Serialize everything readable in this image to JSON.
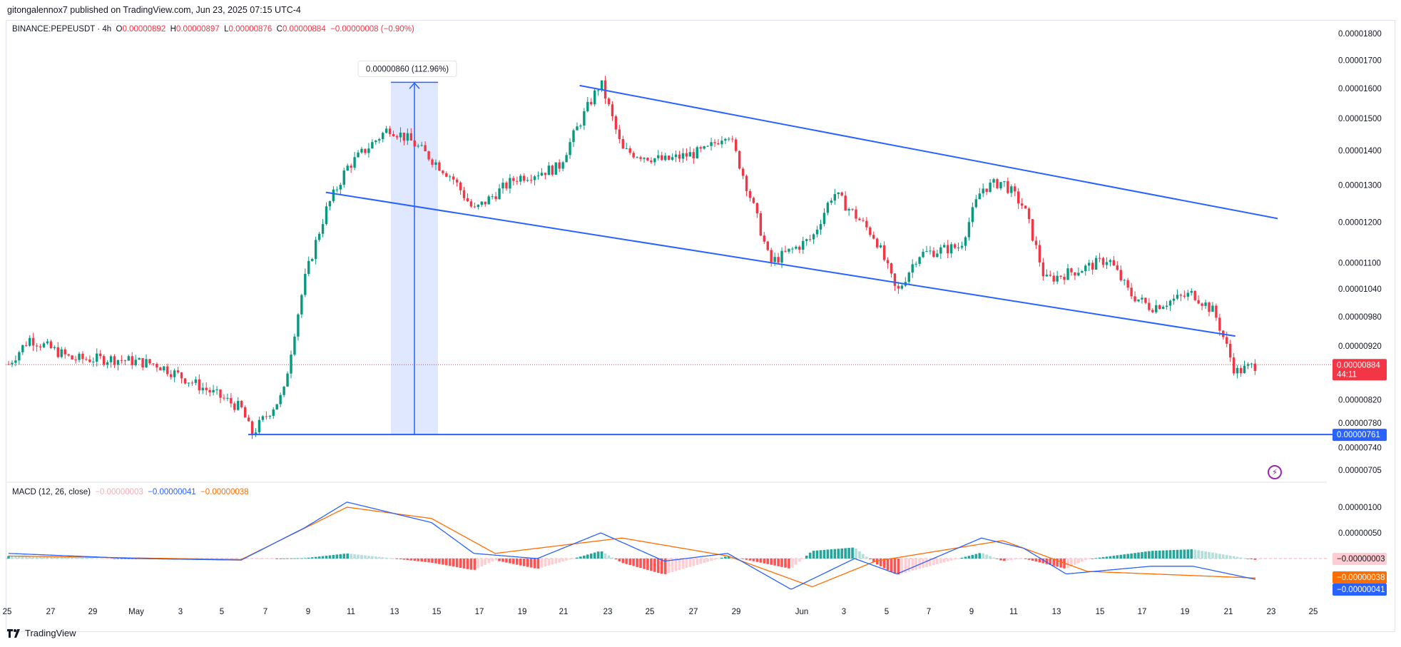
{
  "header": {
    "published": "gitongalennox7 published on TradingView.com, Jun 23, 2025 07:15 UTC-4"
  },
  "legend": {
    "symbol": "BINANCE:PEPEUSDT · 4h",
    "o_label": "O",
    "o": "0.00000892",
    "h_label": "H",
    "h": "0.00000897",
    "l_label": "L",
    "l": "0.00000876",
    "c_label": "C",
    "c": "0.00000884",
    "change": "−0.00000008 (−0.90%)"
  },
  "macd_legend": {
    "name": "MACD (12, 26, close)",
    "hist": "−0.00000003",
    "macd": "−0.00000041",
    "signal": "−0.00000038"
  },
  "measure_label": "0.00000860 (112.96%)",
  "price_tags": {
    "last_price": "0.00000884",
    "countdown": "44:11",
    "hline": "0.00000761",
    "macd_hist": "−0.00000003",
    "macd_signal": "−0.00000038",
    "macd_line": "−0.00000041"
  },
  "footer": {
    "brand": "TradingView"
  },
  "colors": {
    "up": "#089981",
    "down": "#f23645",
    "drawing": "#2962ff",
    "macd_line": "#2962ff",
    "signal_line": "#ff6d00",
    "hist_up_strong": "#26a69a",
    "hist_up_weak": "#b2dfdb",
    "hist_down_strong": "#ff5252",
    "hist_down_weak": "#ffcdd2"
  },
  "chart_data": {
    "type": "candlestick",
    "symbol": "BINANCE:PEPEUSDT",
    "interval": "4h",
    "y_axis": {
      "scale": "log",
      "ticks": [
        "0.00001800",
        "0.00001700",
        "0.00001600",
        "0.00001500",
        "0.00001400",
        "0.00001300",
        "0.00001200",
        "0.00001100",
        "0.00001040",
        "0.00000980",
        "0.00000920",
        "0.00000820",
        "0.00000780",
        "0.00000740",
        "0.00000705"
      ]
    },
    "x_axis": {
      "ticks": [
        "25",
        "27",
        "29",
        "May",
        "3",
        "5",
        "7",
        "9",
        "11",
        "13",
        "15",
        "17",
        "19",
        "21",
        "23",
        "25",
        "27",
        "29",
        "Jun",
        "3",
        "5",
        "7",
        "9",
        "11",
        "13",
        "15",
        "17",
        "19",
        "21",
        "23",
        "25"
      ]
    },
    "price_path": [
      {
        "date": "2025-04-25",
        "close": 8.85
      },
      {
        "date": "2025-04-26",
        "close": 9.35
      },
      {
        "date": "2025-04-28",
        "close": 8.95
      },
      {
        "date": "2025-04-30",
        "close": 8.95
      },
      {
        "date": "2025-05-02",
        "close": 8.85
      },
      {
        "date": "2025-05-04",
        "close": 8.45
      },
      {
        "date": "2025-05-06",
        "close": 8.05
      },
      {
        "date": "2025-05-06T12:00",
        "close": 7.61
      },
      {
        "date": "2025-05-08",
        "close": 8.3
      },
      {
        "date": "2025-05-09",
        "close": 10.6
      },
      {
        "date": "2025-05-10",
        "close": 12.3
      },
      {
        "date": "2025-05-11",
        "close": 13.5
      },
      {
        "date": "2025-05-13",
        "close": 14.7
      },
      {
        "date": "2025-05-14",
        "close": 14.3
      },
      {
        "date": "2025-05-16",
        "close": 13.2
      },
      {
        "date": "2025-05-17",
        "close": 12.3
      },
      {
        "date": "2025-05-19",
        "close": 13.2
      },
      {
        "date": "2025-05-21",
        "close": 13.5
      },
      {
        "date": "2025-05-23",
        "close": 16.2
      },
      {
        "date": "2025-05-24",
        "close": 14.0
      },
      {
        "date": "2025-05-26",
        "close": 13.7
      },
      {
        "date": "2025-05-28",
        "close": 14.0
      },
      {
        "date": "2025-05-29",
        "close": 14.6
      },
      {
        "date": "2025-05-31",
        "close": 11.0
      },
      {
        "date": "2025-06-02",
        "close": 11.6
      },
      {
        "date": "2025-06-03",
        "close": 12.8
      },
      {
        "date": "2025-06-05",
        "close": 11.6
      },
      {
        "date": "2025-06-06",
        "close": 10.3
      },
      {
        "date": "2025-06-07",
        "close": 11.2
      },
      {
        "date": "2025-06-09",
        "close": 11.4
      },
      {
        "date": "2025-06-10",
        "close": 12.9
      },
      {
        "date": "2025-06-11",
        "close": 13.1
      },
      {
        "date": "2025-06-12",
        "close": 12.4
      },
      {
        "date": "2025-06-13",
        "close": 10.6
      },
      {
        "date": "2025-06-15",
        "close": 10.9
      },
      {
        "date": "2025-06-16",
        "close": 11.1
      },
      {
        "date": "2025-06-17",
        "close": 10.3
      },
      {
        "date": "2025-06-18",
        "close": 10.0
      },
      {
        "date": "2025-06-20",
        "close": 10.3
      },
      {
        "date": "2025-06-21",
        "close": 9.9
      },
      {
        "date": "2025-06-22",
        "close": 8.7
      },
      {
        "date": "2025-06-23",
        "close": 8.84
      }
    ],
    "price_unit_note": "close values shown ×1e-6 USDT",
    "last_price": 8.84e-06,
    "horizontal_line": 7.61e-06,
    "measurement": {
      "from": 7.61e-06,
      "to": 1.621e-05,
      "label": "0.00000860 (112.96%)"
    },
    "channel": {
      "upper": [
        {
          "date": "2025-05-22",
          "price": 1.61e-05
        },
        {
          "date": "2025-06-24",
          "price": 1.21e-05
        }
      ],
      "lower": [
        {
          "date": "2025-05-10",
          "price": 1.28e-05
        },
        {
          "date": "2025-06-22",
          "price": 9.4e-06
        }
      ]
    },
    "macd": {
      "params": "12, 26, close",
      "macd_path": [
        {
          "date": "2025-04-25",
          "v": 0.1
        },
        {
          "date": "2025-05-01",
          "v": 0.0
        },
        {
          "date": "2025-05-06",
          "v": -0.03
        },
        {
          "date": "2025-05-09",
          "v": 0.6
        },
        {
          "date": "2025-05-11",
          "v": 1.1
        },
        {
          "date": "2025-05-13",
          "v": 0.9
        },
        {
          "date": "2025-05-15",
          "v": 0.7
        },
        {
          "date": "2025-05-17",
          "v": 0.1
        },
        {
          "date": "2025-05-20",
          "v": 0.0
        },
        {
          "date": "2025-05-23",
          "v": 0.5
        },
        {
          "date": "2025-05-26",
          "v": -0.05
        },
        {
          "date": "2025-05-29",
          "v": 0.1
        },
        {
          "date": "2025-06-01",
          "v": -0.6
        },
        {
          "date": "2025-06-04",
          "v": 0.0
        },
        {
          "date": "2025-06-06",
          "v": -0.3
        },
        {
          "date": "2025-06-10",
          "v": 0.4
        },
        {
          "date": "2025-06-12",
          "v": 0.2
        },
        {
          "date": "2025-06-14",
          "v": -0.3
        },
        {
          "date": "2025-06-18",
          "v": -0.15
        },
        {
          "date": "2025-06-20",
          "v": -0.15
        },
        {
          "date": "2025-06-23",
          "v": -0.41
        }
      ],
      "signal_path": [
        {
          "date": "2025-04-25",
          "v": 0.05
        },
        {
          "date": "2025-05-06",
          "v": -0.02
        },
        {
          "date": "2025-05-11",
          "v": 1.0
        },
        {
          "date": "2025-05-15",
          "v": 0.78
        },
        {
          "date": "2025-05-18",
          "v": 0.1
        },
        {
          "date": "2025-05-24",
          "v": 0.4
        },
        {
          "date": "2025-05-29",
          "v": 0.05
        },
        {
          "date": "2025-06-02",
          "v": -0.55
        },
        {
          "date": "2025-06-05",
          "v": -0.05
        },
        {
          "date": "2025-06-11",
          "v": 0.35
        },
        {
          "date": "2025-06-15",
          "v": -0.25
        },
        {
          "date": "2025-06-23",
          "v": -0.38
        }
      ],
      "unit_note": "values ×1e-6",
      "y_ticks": [
        "0.00000100",
        "0.00000050"
      ]
    }
  }
}
